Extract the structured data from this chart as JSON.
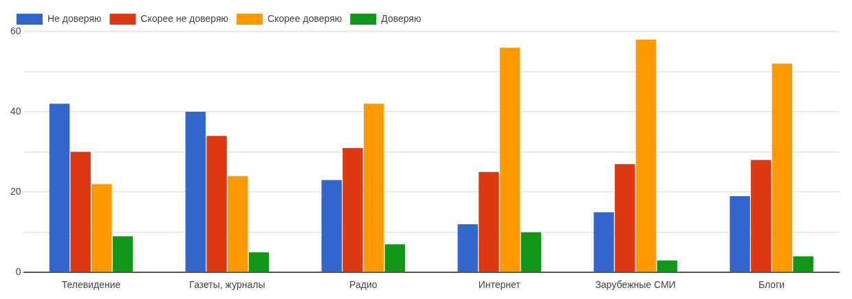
{
  "chart_data": {
    "type": "bar",
    "categories": [
      "Телевидение",
      "Газеты, журналы",
      "Радио",
      "Интернет",
      "Зарубежные СМИ",
      "Блоги"
    ],
    "series": [
      {
        "name": "Не доверяю",
        "color": "#3366cc",
        "values": [
          42,
          40,
          23,
          12,
          15,
          19
        ]
      },
      {
        "name": "Скорее не доверяю",
        "color": "#dc3912",
        "values": [
          30,
          34,
          31,
          25,
          27,
          28
        ]
      },
      {
        "name": "Скорее доверяю",
        "color": "#ff9900",
        "values": [
          22,
          24,
          42,
          56,
          58,
          52
        ]
      },
      {
        "name": "Доверяю",
        "color": "#109618",
        "values": [
          9,
          5,
          7,
          10,
          3,
          4
        ]
      }
    ],
    "ylim": [
      0,
      60
    ],
    "yticks": [
      0,
      {
        "value": 10,
        "label": null
      },
      20,
      {
        "value": 30,
        "label": null
      },
      40,
      {
        "value": 50,
        "label": null
      },
      60
    ],
    "grid": "y",
    "legend": "top left"
  }
}
